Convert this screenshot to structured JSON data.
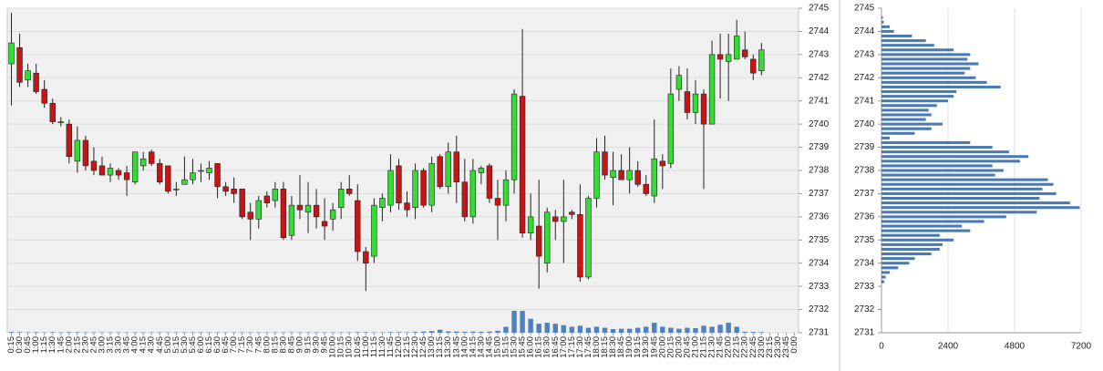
{
  "chart_data": [
    {
      "type": "candlestick",
      "categories": [
        "0:15",
        "0:30",
        "0:45",
        "1:00",
        "1:15",
        "1:30",
        "1:45",
        "2:00",
        "2:15",
        "2:30",
        "2:45",
        "3:00",
        "3:15",
        "3:30",
        "3:45",
        "4:00",
        "4:15",
        "4:30",
        "4:45",
        "5:00",
        "5:15",
        "5:30",
        "5:45",
        "6:00",
        "6:15",
        "6:30",
        "6:45",
        "7:00",
        "7:15",
        "7:30",
        "7:45",
        "8:00",
        "8:15",
        "8:30",
        "8:45",
        "9:00",
        "9:15",
        "9:30",
        "9:45",
        "10:00",
        "10:15",
        "10:30",
        "10:45",
        "11:00",
        "11:15",
        "11:30",
        "11:45",
        "12:00",
        "12:15",
        "12:30",
        "12:45",
        "13:00",
        "13:15",
        "13:30",
        "13:45",
        "14:00",
        "14:15",
        "14:30",
        "14:45",
        "15:00",
        "15:15",
        "15:30",
        "15:45",
        "16:00",
        "16:15",
        "16:30",
        "16:45",
        "17:00",
        "17:15",
        "17:30",
        "17:45",
        "18:00",
        "18:15",
        "18:30",
        "18:45",
        "19:00",
        "19:15",
        "19:30",
        "19:45",
        "20:00",
        "20:15",
        "20:30",
        "20:45",
        "21:00",
        "21:15",
        "21:30",
        "21:45",
        "22:00",
        "22:15",
        "22:30",
        "22:45",
        "23:00",
        "23:15",
        "23:30",
        "23:45",
        "0:00"
      ],
      "open": [
        2742.6,
        2743.3,
        2741.9,
        2742.2,
        2741.5,
        2740.9,
        2740.1,
        2740.0,
        2738.4,
        2739.3,
        2738.4,
        2738.2,
        2737.8,
        2738.0,
        2737.9,
        2737.5,
        2738.2,
        2738.8,
        2738.3,
        2738.2,
        2737.2,
        2737.4,
        2737.6,
        2738.0,
        2737.9,
        2738.3,
        2737.3,
        2737.2,
        2737.2,
        2736.2,
        2735.9,
        2736.9,
        2736.7,
        2737.2,
        2735.2,
        2736.5,
        2736.2,
        2736.5,
        2735.8,
        2735.9,
        2736.4,
        2737.2,
        2736.7,
        2734.5,
        2734.3,
        2736.4,
        2736.5,
        2738.2,
        2736.6,
        2736.4,
        2738.0,
        2736.5,
        2738.6,
        2737.3,
        2738.8,
        2737.5,
        2736.0,
        2737.9,
        2738.2,
        2736.8,
        2736.5,
        2737.6,
        2741.2,
        2735.3,
        2735.6,
        2734.0,
        2736.0,
        2735.8,
        2736.2,
        2736.1,
        2733.4,
        2736.8,
        2738.8,
        2737.7,
        2738.0,
        2737.6,
        2738.0,
        2737.4,
        2736.9,
        2738.4,
        2738.3,
        2741.5,
        2741.4,
        2740.5,
        2741.3,
        2740.0,
        2743.0,
        2742.7,
        2742.8,
        2743.2,
        2742.8,
        2742.3,
        null,
        null,
        null,
        null
      ],
      "high": [
        2744.8,
        2743.9,
        2742.6,
        2742.6,
        2741.9,
        2741.1,
        2740.3,
        2740.2,
        2739.9,
        2739.5,
        2739.0,
        2738.6,
        2738.3,
        2738.1,
        2738.2,
        2738.8,
        2738.8,
        2738.9,
        2738.5,
        2738.2,
        2737.5,
        2738.6,
        2738.5,
        2738.3,
        2738.4,
        2738.3,
        2737.5,
        2737.7,
        2737.2,
        2736.6,
        2736.9,
        2737.1,
        2737.5,
        2737.5,
        2736.9,
        2737.8,
        2737.5,
        2737.2,
        2736.8,
        2736.6,
        2737.5,
        2737.8,
        2737.4,
        2734.7,
        2736.8,
        2737.0,
        2738.7,
        2738.5,
        2737.1,
        2738.3,
        2738.1,
        2738.6,
        2738.7,
        2739.2,
        2739.5,
        2738.5,
        2738.5,
        2738.2,
        2738.3,
        2737.6,
        2738.0,
        2741.5,
        2744.1,
        2737.0,
        2737.6,
        2736.4,
        2736.3,
        2737.6,
        2736.3,
        2737.4,
        2736.9,
        2739.4,
        2739.5,
        2738.8,
        2738.7,
        2739.0,
        2738.4,
        2737.8,
        2740.2,
        2738.7,
        2742.4,
        2742.5,
        2742.4,
        2741.9,
        2741.5,
        2743.6,
        2743.9,
        2743.9,
        2744.5,
        2744.0,
        2743.0,
        2743.5,
        null,
        null,
        null,
        null
      ],
      "low": [
        2740.8,
        2741.6,
        2741.6,
        2741.3,
        2740.7,
        2740.0,
        2739.9,
        2738.3,
        2737.9,
        2738.0,
        2737.8,
        2737.8,
        2737.5,
        2737.6,
        2736.9,
        2737.4,
        2738.0,
        2738.2,
        2737.4,
        2737.0,
        2736.9,
        2737.4,
        2737.4,
        2737.5,
        2737.6,
        2736.8,
        2736.9,
        2736.6,
        2735.9,
        2735.0,
        2735.5,
        2736.4,
        2736.4,
        2735.0,
        2735.0,
        2735.9,
        2735.3,
        2735.5,
        2735.0,
        2735.4,
        2735.9,
        2736.9,
        2734.1,
        2732.8,
        2734.0,
        2735.8,
        2736.2,
        2736.3,
        2736.0,
        2735.9,
        2736.4,
        2736.2,
        2737.2,
        2737.0,
        2736.6,
        2735.8,
        2735.7,
        2737.4,
        2736.6,
        2735.0,
        2735.8,
        2737.0,
        2735.1,
        2735.0,
        2732.9,
        2733.6,
        2735.0,
        2734.0,
        2735.9,
        2733.2,
        2733.3,
        2736.4,
        2737.6,
        2736.5,
        2737.6,
        2737.0,
        2737.3,
        2736.9,
        2736.6,
        2737.2,
        2738.1,
        2741.0,
        2740.2,
        2740.0,
        2737.2,
        2740.0,
        2741.1,
        2741.0,
        2742.8,
        2742.8,
        2741.9,
        2742.1,
        null,
        null,
        null,
        null
      ],
      "close": [
        2743.5,
        2741.8,
        2742.3,
        2741.4,
        2740.9,
        2740.1,
        2740.1,
        2738.6,
        2739.3,
        2738.2,
        2738.0,
        2737.8,
        2738.1,
        2737.8,
        2737.6,
        2738.8,
        2738.5,
        2738.3,
        2737.5,
        2737.1,
        2737.2,
        2737.6,
        2737.9,
        2738.0,
        2738.1,
        2737.3,
        2737.1,
        2737.0,
        2736.0,
        2735.9,
        2736.7,
        2736.6,
        2737.2,
        2735.1,
        2736.5,
        2736.3,
        2736.5,
        2736.0,
        2735.6,
        2736.3,
        2737.2,
        2737.0,
        2734.5,
        2734.0,
        2736.5,
        2736.8,
        2738.0,
        2736.6,
        2736.3,
        2738.0,
        2736.5,
        2738.3,
        2737.3,
        2738.8,
        2737.5,
        2736.0,
        2738.0,
        2738.1,
        2736.8,
        2736.5,
        2737.6,
        2741.3,
        2735.3,
        2736.0,
        2734.3,
        2736.2,
        2735.8,
        2736.0,
        2736.1,
        2733.4,
        2736.8,
        2738.8,
        2737.8,
        2738.0,
        2737.6,
        2738.0,
        2737.4,
        2737.0,
        2738.5,
        2738.2,
        2741.3,
        2742.1,
        2740.5,
        2741.3,
        2740.0,
        2743.0,
        2742.8,
        2743.0,
        2743.8,
        2742.9,
        2742.2,
        2743.2,
        null,
        null,
        null,
        null
      ],
      "volume": [
        40,
        30,
        20,
        30,
        20,
        30,
        20,
        30,
        30,
        20,
        20,
        20,
        20,
        20,
        20,
        20,
        20,
        20,
        20,
        20,
        20,
        20,
        20,
        20,
        20,
        20,
        20,
        20,
        20,
        20,
        20,
        20,
        20,
        20,
        20,
        20,
        20,
        20,
        20,
        20,
        20,
        20,
        30,
        30,
        20,
        20,
        30,
        30,
        20,
        40,
        60,
        80,
        150,
        70,
        60,
        50,
        60,
        50,
        60,
        100,
        300,
        1100,
        1100,
        700,
        450,
        500,
        450,
        380,
        300,
        350,
        250,
        300,
        250,
        180,
        200,
        200,
        250,
        300,
        500,
        300,
        250,
        200,
        250,
        230,
        350,
        300,
        400,
        500,
        300,
        50,
        40,
        30,
        null,
        null,
        null,
        null
      ],
      "up_color": "#33dd33",
      "down_color": "#c81414",
      "volume_color": "#4f81bd",
      "ylim": [
        2731,
        2745
      ],
      "yticks": [
        2731,
        2732,
        2733,
        2734,
        2735,
        2736,
        2737,
        2738,
        2739,
        2740,
        2741,
        2742,
        2743,
        2744,
        2745
      ],
      "grid": true
    },
    {
      "type": "bar",
      "orientation": "horizontal",
      "y": [
        2744.6,
        2744.4,
        2744.2,
        2744.0,
        2743.8,
        2743.6,
        2743.4,
        2743.2,
        2743.0,
        2742.8,
        2742.6,
        2742.4,
        2742.2,
        2742.0,
        2741.8,
        2741.6,
        2741.4,
        2741.2,
        2741.0,
        2740.8,
        2740.6,
        2740.4,
        2740.2,
        2740.0,
        2739.8,
        2739.6,
        2739.4,
        2739.2,
        2739.0,
        2738.8,
        2738.6,
        2738.4,
        2738.2,
        2738.0,
        2737.8,
        2737.6,
        2737.4,
        2737.2,
        2737.0,
        2736.8,
        2736.6,
        2736.4,
        2736.2,
        2736.0,
        2735.8,
        2735.6,
        2735.4,
        2735.2,
        2735.0,
        2734.8,
        2734.6,
        2734.4,
        2734.2,
        2734.0,
        2733.8,
        2733.6,
        2733.4,
        2733.2
      ],
      "values": [
        50,
        80,
        300,
        450,
        1100,
        1600,
        1900,
        2600,
        3200,
        3100,
        3500,
        3200,
        3000,
        3400,
        3800,
        4300,
        2700,
        2600,
        2400,
        2000,
        1700,
        1800,
        1600,
        2200,
        1800,
        1200,
        300,
        3200,
        4000,
        4600,
        5300,
        5000,
        4000,
        4400,
        4100,
        6000,
        6200,
        5800,
        6300,
        5700,
        6800,
        7150,
        5600,
        4500,
        3700,
        2900,
        3200,
        2100,
        2600,
        2200,
        2100,
        1800,
        1200,
        1000,
        600,
        300,
        150,
        100
      ],
      "color": "#4a7ab5",
      "xlim": [
        0,
        7200
      ],
      "xticks": [
        0,
        2400,
        4800,
        7200
      ],
      "ylim": [
        2731,
        2745
      ],
      "yticks": [
        2731,
        2732,
        2733,
        2734,
        2735,
        2736,
        2737,
        2738,
        2739,
        2740,
        2741,
        2742,
        2743,
        2744,
        2745
      ],
      "grid": true
    }
  ]
}
